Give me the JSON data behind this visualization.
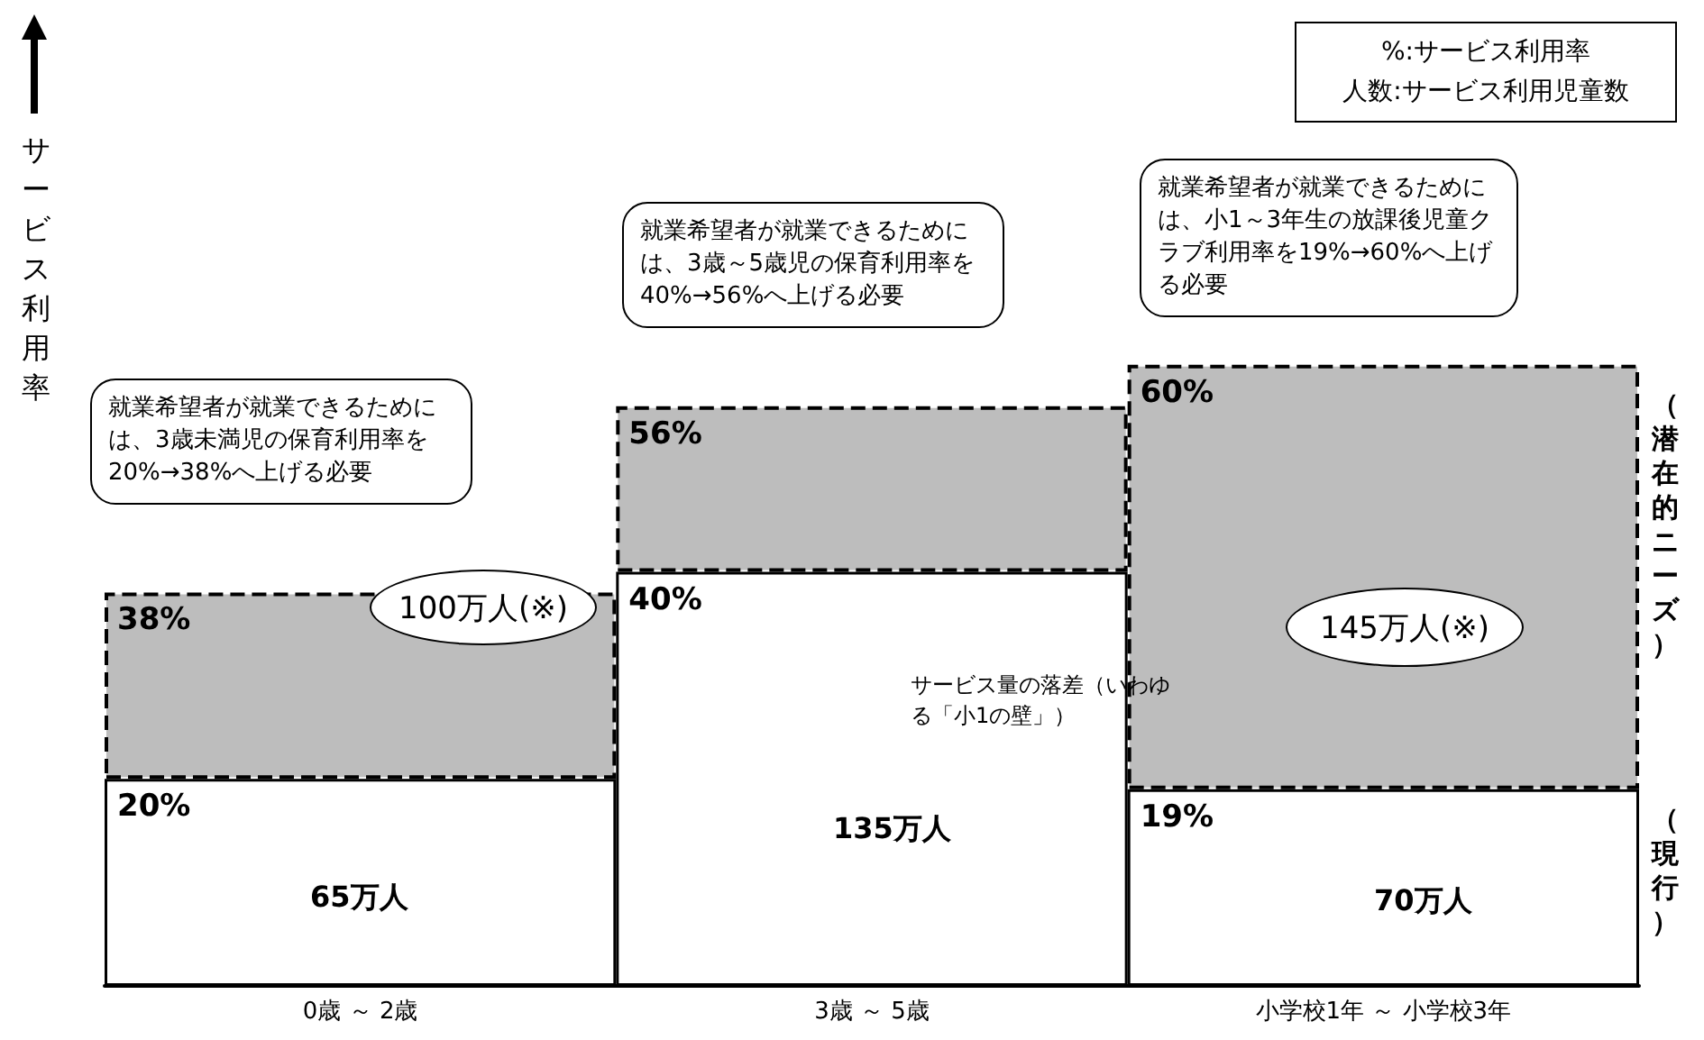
{
  "chart_data": {
    "type": "bar",
    "ylabel": "サービス利用率",
    "categories": [
      "0歳 ～ 2歳",
      "3歳 ～ 5歳",
      "小学校1年 ～ 小学校3年"
    ],
    "stacked": true,
    "series": [
      {
        "name": "（現行）",
        "color": "#ffffff",
        "values": [
          20,
          40,
          19
        ],
        "value_labels": [
          "20%",
          "40%",
          "19%"
        ]
      },
      {
        "name": "（潜在的ニーズ）",
        "color": "#bdbdbd",
        "values": [
          18,
          16,
          41
        ]
      }
    ],
    "totals": [
      "38%",
      "56%",
      "60%"
    ],
    "annotations": [
      "%:サービス利用率",
      "人数:サービス利用児童数",
      "就業希望者が就業できるためには、3歳未満児の保育利用率を20%→38%へ上げる必要",
      "就業希望者が就業できるためには、3歳～5歳児の保育利用率を40%→56%へ上げる必要",
      "就業希望者が就業できるためには、小1～3年生の放課後児童クラブ利用率を19%→60%へ上げる必要",
      "サービス量の落差（いわゆる「小1の壁」）",
      "65万人",
      "135万人",
      "70万人",
      "100万人(※)",
      "145万人(※)"
    ]
  }
}
